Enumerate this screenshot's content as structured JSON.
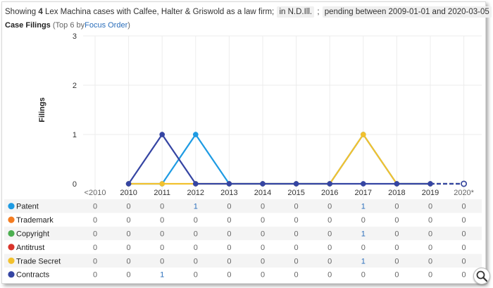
{
  "header": {
    "prefix": "Showing",
    "count": "4",
    "middle": "Lex Machina cases with Calfee, Halter & Griswold as a law firm;",
    "court_pill": "in N.D.Ill.",
    "sep": ";",
    "date_pill": "pending between 2009-01-01 and 2020-03-05",
    "suffix": "."
  },
  "subtitle": {
    "main": "Case Filings",
    "note_open": "(Top 6 by",
    "link": "Focus Order",
    "note_close": ")"
  },
  "zoom_icon": "magnifier-icon",
  "chart_data": {
    "type": "line",
    "ylabel": "Filings",
    "ylim": [
      0,
      3
    ],
    "yticks": [
      "0",
      "1",
      "2",
      "3"
    ],
    "categories": [
      "<2010",
      "2010",
      "2011",
      "2012",
      "2013",
      "2014",
      "2015",
      "2016",
      "2017",
      "2018",
      "2019",
      "2020*"
    ],
    "grid": true,
    "legend_placement": "table-left",
    "series": [
      {
        "name": "Patent",
        "color": "#1e9be3",
        "values": [
          0,
          0,
          0,
          1,
          0,
          0,
          0,
          0,
          1,
          0,
          0,
          0
        ]
      },
      {
        "name": "Trademark",
        "color": "#f47c20",
        "values": [
          0,
          0,
          0,
          0,
          0,
          0,
          0,
          0,
          0,
          0,
          0,
          0
        ]
      },
      {
        "name": "Copyright",
        "color": "#4caf50",
        "values": [
          0,
          0,
          0,
          0,
          0,
          0,
          0,
          0,
          1,
          0,
          0,
          0
        ]
      },
      {
        "name": "Antitrust",
        "color": "#d9342b",
        "values": [
          0,
          0,
          0,
          0,
          0,
          0,
          0,
          0,
          0,
          0,
          0,
          0
        ]
      },
      {
        "name": "Trade Secret",
        "color": "#f2c12e",
        "values": [
          0,
          0,
          0,
          0,
          0,
          0,
          0,
          0,
          1,
          0,
          0,
          0
        ]
      },
      {
        "name": "Contracts",
        "color": "#3545a3",
        "values": [
          0,
          0,
          1,
          0,
          0,
          0,
          0,
          0,
          0,
          0,
          0,
          0
        ]
      }
    ],
    "plotted_series": [
      "Patent",
      "Trade Secret",
      "Contracts"
    ],
    "plotted_x_start": 1,
    "projected_last_point": true
  }
}
